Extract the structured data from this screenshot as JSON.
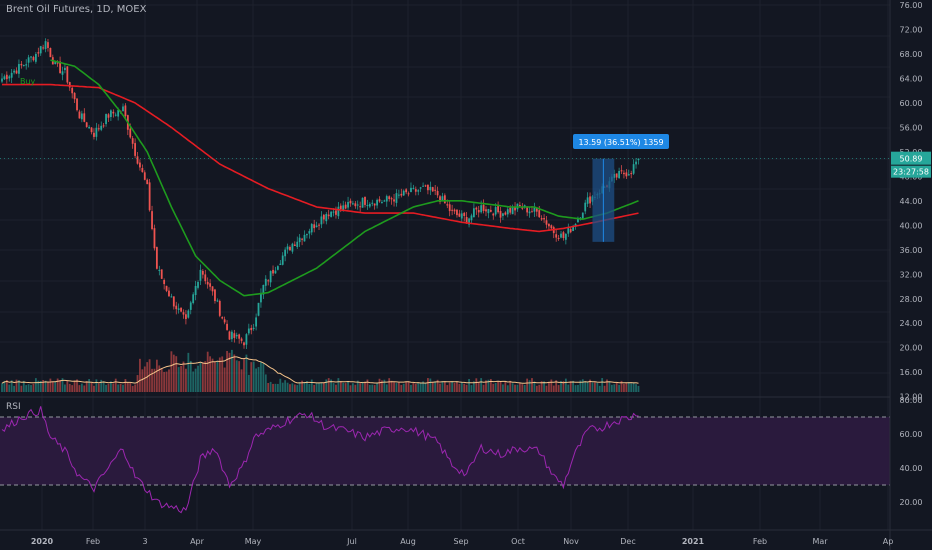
{
  "header": {
    "title": "Brent Oil Futures, 1D, MOEX"
  },
  "rsi_panel": {
    "label": "RSI"
  },
  "colors": {
    "background": "#131722",
    "grid": "#1e222d",
    "up": "#26a69a",
    "down": "#ef5350",
    "ma_fast": "#1e9b1e",
    "ma_slow": "#e51c23",
    "volume_ma": "#f5c38a",
    "rsi_line": "#9c27b0",
    "rsi_band": "#2a1a3d",
    "axis_text": "#b2b5be",
    "measure_fill": "#1e4f86",
    "measure_label": "#1e88e5",
    "price_tag": "#26a69a"
  },
  "axes": {
    "price_ticks": [
      "76.00",
      "72.00",
      "68.00",
      "64.00",
      "60.00",
      "56.00",
      "52.00",
      "48.00",
      "44.00",
      "40.00",
      "36.00",
      "32.00",
      "28.00",
      "24.00",
      "20.00",
      "16.00",
      "12.00"
    ],
    "rsi_ticks": [
      "80.00",
      "60.00",
      "40.00",
      "20.00"
    ],
    "time_ticks": [
      "2020",
      "Feb",
      "3",
      "Apr",
      "May",
      "Jul",
      "Aug",
      "Sep",
      "Oct",
      "Nov",
      "Dec",
      "2021",
      "Feb",
      "Mar",
      "Ap"
    ]
  },
  "annotations": {
    "buy_label": "Buy",
    "measure_label": "13.59 (36.51%) 1359",
    "last_price": "50.89",
    "countdown": "23:27:58"
  },
  "chart_data": {
    "type": "candlestick",
    "title": "Brent Oil Futures, 1D, MOEX",
    "price_range": [
      12,
      76
    ],
    "rsi_range": [
      10,
      80
    ],
    "rsi_levels": [
      70,
      30
    ],
    "price_anchors": [
      {
        "i": 0,
        "v": 64
      },
      {
        "i": 8,
        "v": 66
      },
      {
        "i": 14,
        "v": 68
      },
      {
        "i": 18,
        "v": 70
      },
      {
        "i": 22,
        "v": 66
      },
      {
        "i": 26,
        "v": 65
      },
      {
        "i": 32,
        "v": 58
      },
      {
        "i": 38,
        "v": 55
      },
      {
        "i": 44,
        "v": 58
      },
      {
        "i": 50,
        "v": 59
      },
      {
        "i": 55,
        "v": 52
      },
      {
        "i": 60,
        "v": 46
      },
      {
        "i": 64,
        "v": 33
      },
      {
        "i": 70,
        "v": 28
      },
      {
        "i": 76,
        "v": 24
      },
      {
        "i": 82,
        "v": 33
      },
      {
        "i": 88,
        "v": 28
      },
      {
        "i": 94,
        "v": 22
      },
      {
        "i": 100,
        "v": 21
      },
      {
        "i": 104,
        "v": 24
      },
      {
        "i": 108,
        "v": 30
      },
      {
        "i": 114,
        "v": 34
      },
      {
        "i": 120,
        "v": 37
      },
      {
        "i": 126,
        "v": 39
      },
      {
        "i": 134,
        "v": 42
      },
      {
        "i": 142,
        "v": 43
      },
      {
        "i": 150,
        "v": 44
      },
      {
        "i": 158,
        "v": 44
      },
      {
        "i": 166,
        "v": 45
      },
      {
        "i": 174,
        "v": 46
      },
      {
        "i": 180,
        "v": 45
      },
      {
        "i": 186,
        "v": 42
      },
      {
        "i": 192,
        "v": 41
      },
      {
        "i": 198,
        "v": 43
      },
      {
        "i": 206,
        "v": 42
      },
      {
        "i": 214,
        "v": 43
      },
      {
        "i": 222,
        "v": 42
      },
      {
        "i": 228,
        "v": 39
      },
      {
        "i": 232,
        "v": 38
      },
      {
        "i": 236,
        "v": 40
      },
      {
        "i": 242,
        "v": 44
      },
      {
        "i": 248,
        "v": 46
      },
      {
        "i": 254,
        "v": 48
      },
      {
        "i": 260,
        "v": 49
      },
      {
        "i": 263,
        "v": 50.89
      }
    ],
    "rsi_anchors": [
      {
        "i": 0,
        "v": 62
      },
      {
        "i": 8,
        "v": 70
      },
      {
        "i": 16,
        "v": 74
      },
      {
        "i": 20,
        "v": 58
      },
      {
        "i": 26,
        "v": 50
      },
      {
        "i": 32,
        "v": 35
      },
      {
        "i": 38,
        "v": 28
      },
      {
        "i": 44,
        "v": 40
      },
      {
        "i": 50,
        "v": 52
      },
      {
        "i": 55,
        "v": 35
      },
      {
        "i": 60,
        "v": 27
      },
      {
        "i": 64,
        "v": 20
      },
      {
        "i": 70,
        "v": 17
      },
      {
        "i": 76,
        "v": 15
      },
      {
        "i": 82,
        "v": 45
      },
      {
        "i": 88,
        "v": 52
      },
      {
        "i": 94,
        "v": 30
      },
      {
        "i": 100,
        "v": 42
      },
      {
        "i": 104,
        "v": 58
      },
      {
        "i": 110,
        "v": 62
      },
      {
        "i": 118,
        "v": 68
      },
      {
        "i": 126,
        "v": 72
      },
      {
        "i": 134,
        "v": 64
      },
      {
        "i": 142,
        "v": 62
      },
      {
        "i": 150,
        "v": 58
      },
      {
        "i": 158,
        "v": 62
      },
      {
        "i": 166,
        "v": 64
      },
      {
        "i": 174,
        "v": 60
      },
      {
        "i": 180,
        "v": 55
      },
      {
        "i": 186,
        "v": 42
      },
      {
        "i": 192,
        "v": 36
      },
      {
        "i": 198,
        "v": 52
      },
      {
        "i": 206,
        "v": 48
      },
      {
        "i": 214,
        "v": 52
      },
      {
        "i": 222,
        "v": 50
      },
      {
        "i": 228,
        "v": 35
      },
      {
        "i": 232,
        "v": 30
      },
      {
        "i": 236,
        "v": 46
      },
      {
        "i": 242,
        "v": 62
      },
      {
        "i": 248,
        "v": 64
      },
      {
        "i": 254,
        "v": 68
      },
      {
        "i": 260,
        "v": 70
      },
      {
        "i": 263,
        "v": 73
      }
    ],
    "ma_fast_anchors": [
      {
        "i": 20,
        "v": 67
      },
      {
        "i": 30,
        "v": 66
      },
      {
        "i": 40,
        "v": 63
      },
      {
        "i": 50,
        "v": 58
      },
      {
        "i": 60,
        "v": 52
      },
      {
        "i": 70,
        "v": 43
      },
      {
        "i": 80,
        "v": 35
      },
      {
        "i": 90,
        "v": 31
      },
      {
        "i": 100,
        "v": 28.5
      },
      {
        "i": 110,
        "v": 29
      },
      {
        "i": 120,
        "v": 31
      },
      {
        "i": 130,
        "v": 33
      },
      {
        "i": 140,
        "v": 36
      },
      {
        "i": 150,
        "v": 39
      },
      {
        "i": 160,
        "v": 41
      },
      {
        "i": 170,
        "v": 43
      },
      {
        "i": 180,
        "v": 44
      },
      {
        "i": 190,
        "v": 44
      },
      {
        "i": 200,
        "v": 43.5
      },
      {
        "i": 210,
        "v": 43
      },
      {
        "i": 220,
        "v": 43
      },
      {
        "i": 230,
        "v": 41.5
      },
      {
        "i": 240,
        "v": 41
      },
      {
        "i": 250,
        "v": 42
      },
      {
        "i": 263,
        "v": 44
      }
    ],
    "ma_slow_anchors": [
      {
        "i": 0,
        "v": 63
      },
      {
        "i": 20,
        "v": 63
      },
      {
        "i": 40,
        "v": 62.5
      },
      {
        "i": 55,
        "v": 60
      },
      {
        "i": 70,
        "v": 56
      },
      {
        "i": 90,
        "v": 50
      },
      {
        "i": 110,
        "v": 46
      },
      {
        "i": 130,
        "v": 43
      },
      {
        "i": 150,
        "v": 42
      },
      {
        "i": 170,
        "v": 42
      },
      {
        "i": 190,
        "v": 40.5
      },
      {
        "i": 210,
        "v": 39.5
      },
      {
        "i": 222,
        "v": 39
      },
      {
        "i": 232,
        "v": 39.5
      },
      {
        "i": 245,
        "v": 40.5
      },
      {
        "i": 263,
        "v": 42
      }
    ],
    "last_price": 50.89,
    "measure": {
      "i_start": 244,
      "i_end": 253,
      "low": 37.3,
      "high": 50.89,
      "change": "13.59",
      "percent": "36.51%",
      "bars": "1359"
    }
  }
}
